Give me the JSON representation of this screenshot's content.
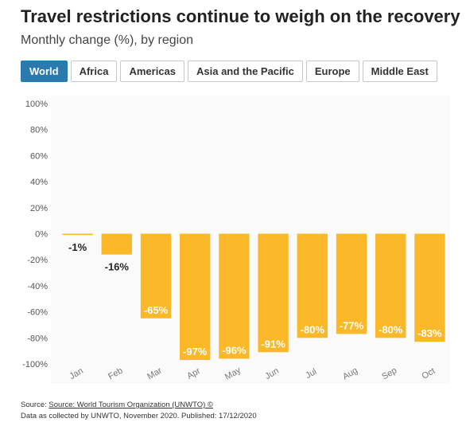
{
  "header": {
    "title": "Travel restrictions continue to weigh on the recovery",
    "subtitle": "Monthly change (%), by region"
  },
  "tabs": [
    {
      "label": "World",
      "active": true
    },
    {
      "label": "Africa",
      "active": false
    },
    {
      "label": "Americas",
      "active": false
    },
    {
      "label": "Asia and the Pacific",
      "active": false
    },
    {
      "label": "Europe",
      "active": false
    },
    {
      "label": "Middle East",
      "active": false
    }
  ],
  "chart_data": {
    "type": "bar",
    "categories": [
      "Jan",
      "Feb",
      "Mar",
      "Apr",
      "May",
      "Jun",
      "Jul",
      "Aug",
      "Sep",
      "Oct"
    ],
    "values": [
      -1,
      -16,
      -65,
      -97,
      -96,
      -91,
      -80,
      -77,
      -80,
      -83
    ],
    "data_labels": [
      "-1%",
      "-16%",
      "-65%",
      "-97%",
      "-96%",
      "-91%",
      "-80%",
      "-77%",
      "-80%",
      "-83%"
    ],
    "y_ticks": [
      "100%",
      "80%",
      "60%",
      "40%",
      "20%",
      "0%",
      "-20%",
      "-40%",
      "-60%",
      "-80%",
      "-100%"
    ],
    "ylim": [
      -100,
      100
    ],
    "bar_color": "#fbb829",
    "grid": false
  },
  "footer": {
    "source_prefix": "Source: ",
    "source_link": "Source: World Tourism Organization (UNWTO) ©",
    "note": "Data as collected by UNWTO, November 2020. Published: 17/12/2020"
  },
  "colors": {
    "accent": "#2a7ab0",
    "bar": "#fbb829"
  }
}
